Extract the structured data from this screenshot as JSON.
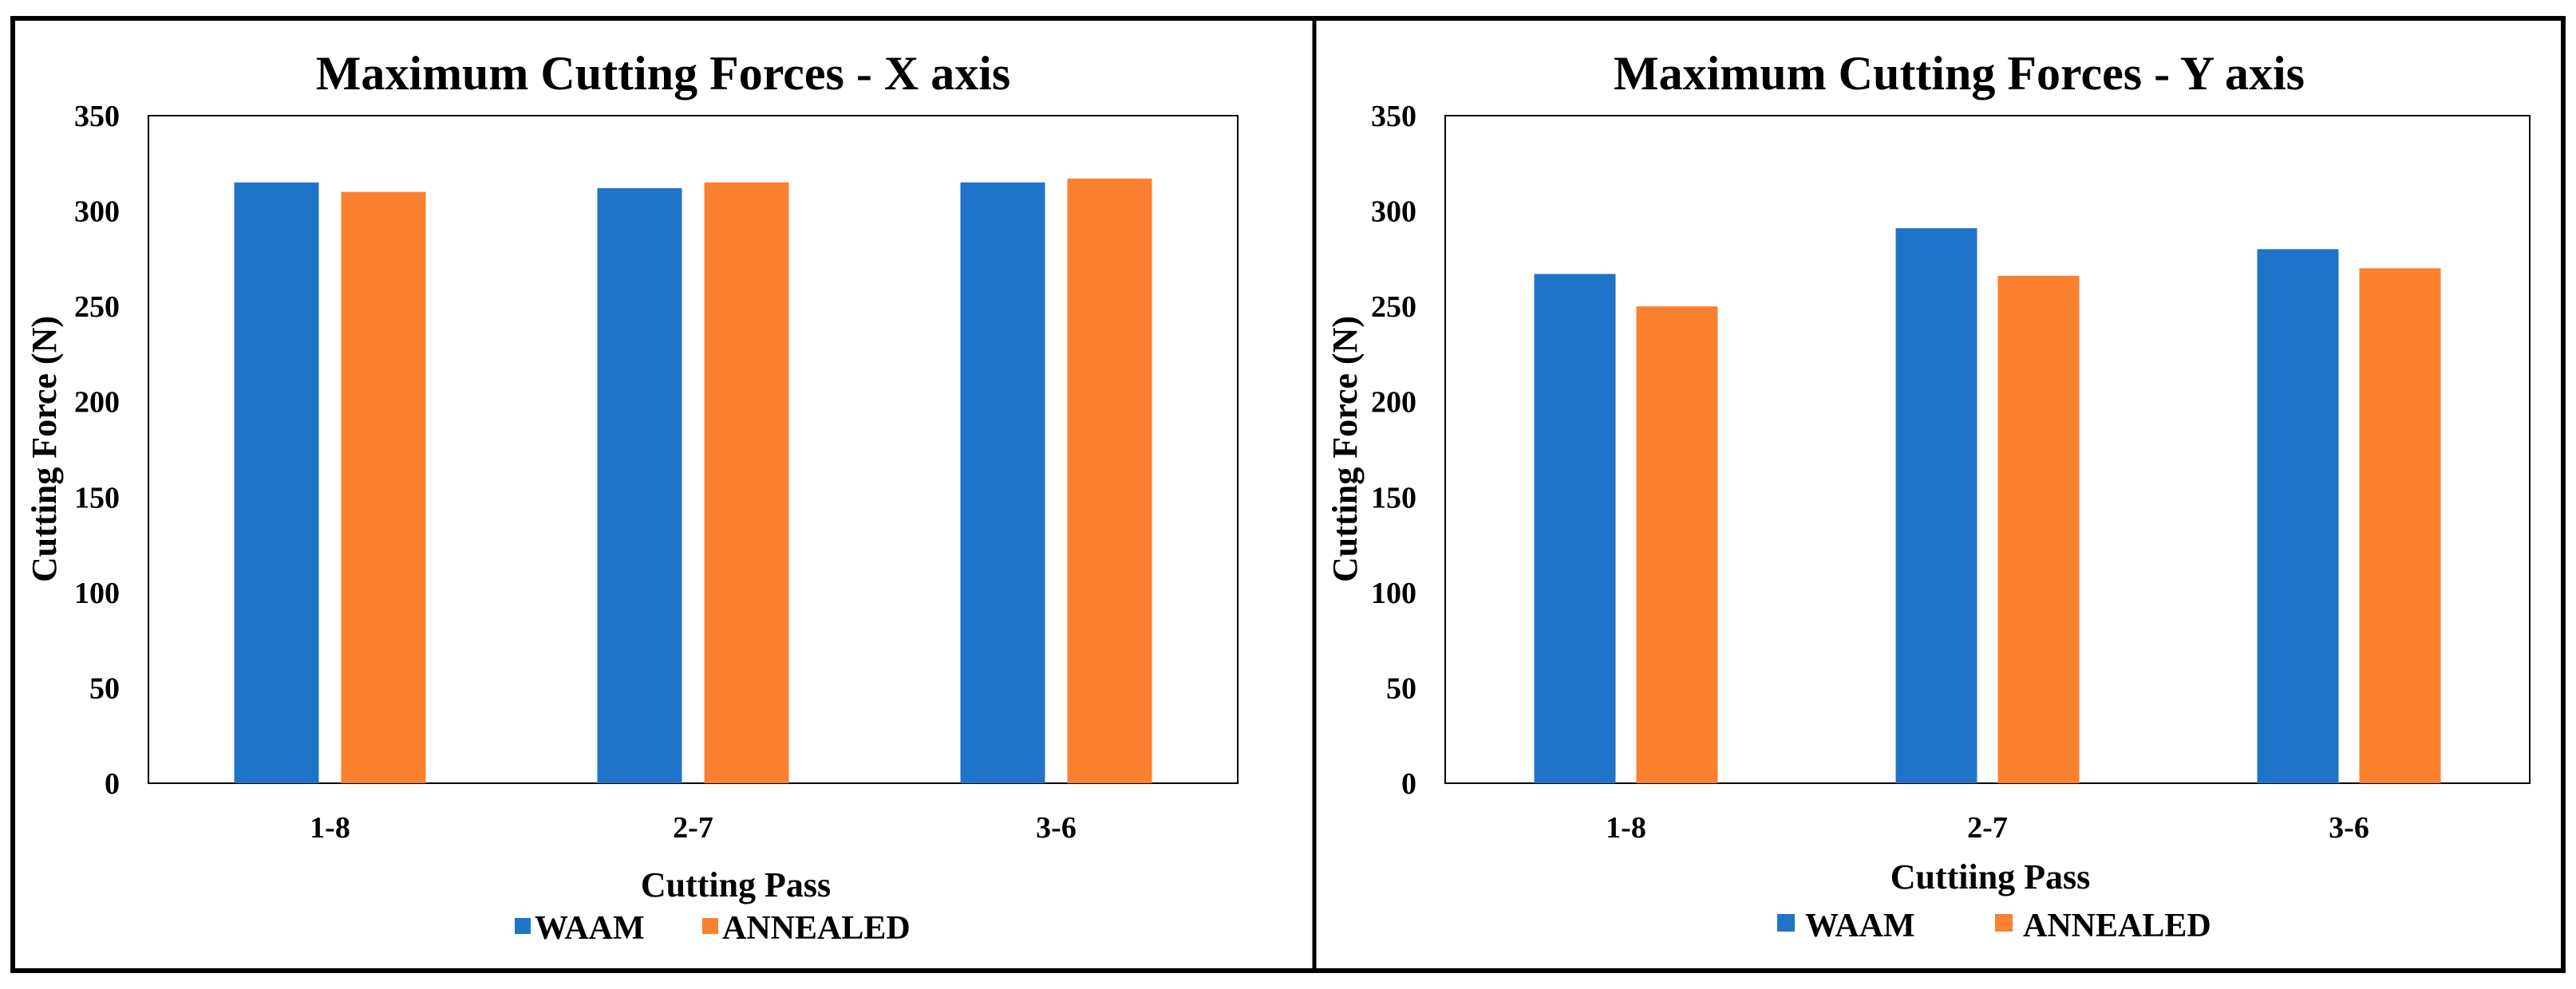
{
  "chart_data": [
    {
      "type": "bar",
      "title": "Maximum Cutting Forces - X axis",
      "xlabel": "Cutting Pass",
      "ylabel": "Cutting Force (N)",
      "categories": [
        "1-8",
        "2-7",
        "3-6"
      ],
      "series": [
        {
          "name": "WAAM",
          "color": "#1f74c9",
          "values": [
            315,
            312,
            315
          ]
        },
        {
          "name": "ANNEALED",
          "color": "#fb8030",
          "values": [
            310,
            315,
            317
          ]
        }
      ],
      "ylim": [
        0,
        350
      ],
      "yticks": [
        "0",
        "50",
        "100",
        "150",
        "200",
        "250",
        "300",
        "350"
      ],
      "legend": "bottom-center",
      "grid": false
    },
    {
      "type": "bar",
      "title": "Maximum Cutting Forces - Y axis",
      "xlabel": "Cuttiing Pass",
      "ylabel": "Cutting Force (N)",
      "categories": [
        "1-8",
        "2-7",
        "3-6"
      ],
      "series": [
        {
          "name": "WAAM",
          "color": "#1f74c9",
          "values": [
            267,
            291,
            280
          ]
        },
        {
          "name": "ANNEALED",
          "color": "#fb8030",
          "values": [
            250,
            266,
            270
          ]
        }
      ],
      "ylim": [
        0,
        350
      ],
      "yticks": [
        "0",
        "50",
        "100",
        "150",
        "200",
        "250",
        "300",
        "350"
      ],
      "legend": "bottom-center",
      "grid": false
    }
  ]
}
